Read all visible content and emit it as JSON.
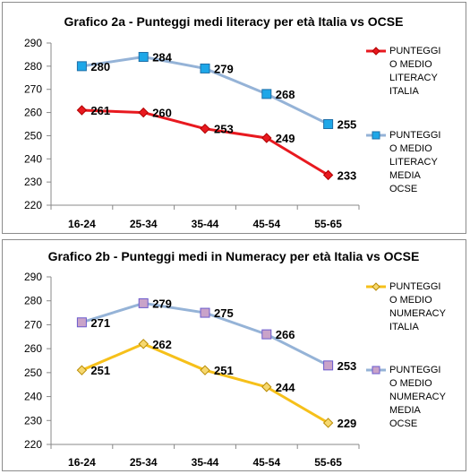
{
  "chart_data": [
    {
      "type": "line",
      "title": "Grafico 2a - Punteggi medi literacy per età Italia vs OCSE",
      "categories": [
        "16-24",
        "25-34",
        "35-44",
        "45-54",
        "55-65"
      ],
      "ylim": [
        220,
        290
      ],
      "yticks": [
        220,
        230,
        240,
        250,
        260,
        270,
        280,
        290
      ],
      "grid": false,
      "legend_position": "right",
      "series": [
        {
          "name": "PUNTEGGIO MEDIO LITERACY ITALIA",
          "legend_lines": [
            "PUNTEGGI",
            "O MEDIO",
            "LITERACY",
            "ITALIA"
          ],
          "values": [
            261,
            260,
            253,
            249,
            233
          ],
          "color": "#e8191f",
          "marker": "diamond",
          "marker_fill": "#e8191f",
          "marker_stroke": "#b00000"
        },
        {
          "name": "PUNTEGGIO MEDIO LITERACY MEDIA OCSE",
          "legend_lines": [
            "PUNTEGGI",
            "O MEDIO",
            "LITERACY",
            "MEDIA",
            "OCSE"
          ],
          "values": [
            280,
            284,
            279,
            268,
            255
          ],
          "color": "#95b3d7",
          "marker": "square",
          "marker_fill": "#1ea7e8",
          "marker_stroke": "#1e6fa8"
        }
      ]
    },
    {
      "type": "line",
      "title": "Grafico 2b - Punteggi medi in Numeracy per età Italia vs OCSE",
      "categories": [
        "16-24",
        "25-34",
        "35-44",
        "45-54",
        "55-65"
      ],
      "ylim": [
        220,
        290
      ],
      "yticks": [
        220,
        230,
        240,
        250,
        260,
        270,
        280,
        290
      ],
      "grid": false,
      "legend_position": "right",
      "series": [
        {
          "name": "PUNTEGGIO MEDIO NUMERACY ITALIA",
          "legend_lines": [
            "PUNTEGGI",
            "O MEDIO",
            "NUMERACY",
            "ITALIA"
          ],
          "values": [
            251,
            262,
            251,
            244,
            229
          ],
          "color": "#f6c01a",
          "marker": "diamond",
          "marker_fill": "#f6d870",
          "marker_stroke": "#b88a00"
        },
        {
          "name": "PUNTEGGIO MEDIO NUMERACY MEDIA OCSE",
          "legend_lines": [
            "PUNTEGGI",
            "O MEDIO",
            "NUMERACY",
            "MEDIA",
            "OCSE"
          ],
          "values": [
            271,
            279,
            275,
            266,
            253
          ],
          "color": "#95b3d7",
          "marker": "square",
          "marker_fill": "#c9a3c9",
          "marker_stroke": "#6a5acd"
        }
      ]
    }
  ]
}
